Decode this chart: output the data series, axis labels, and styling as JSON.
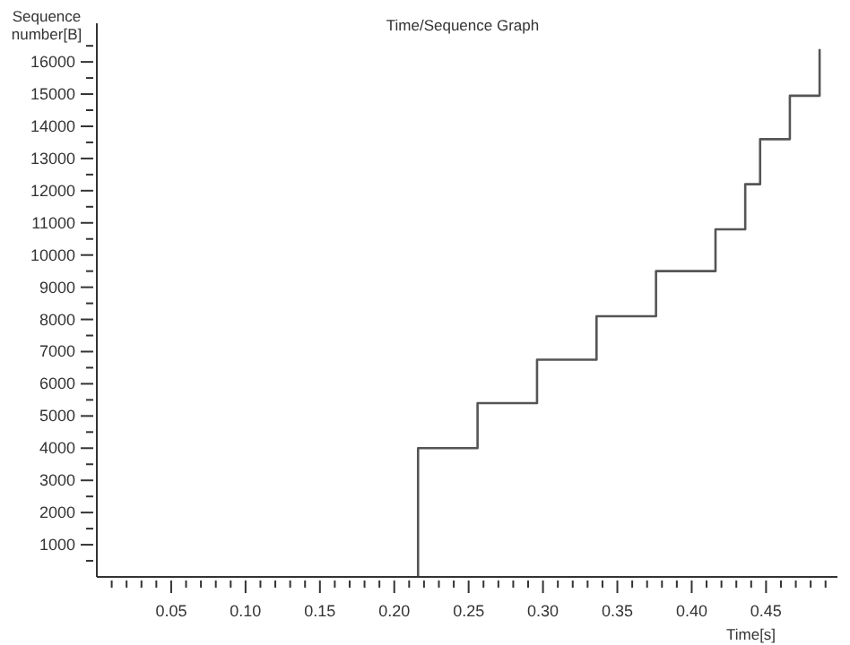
{
  "chart_data": {
    "type": "step",
    "title": "Time/Sequence Graph",
    "xlabel": "Time[s]",
    "ylabel": "Sequence\nnumber[B]",
    "x": [
      0.216,
      0.216,
      0.256,
      0.296,
      0.336,
      0.376,
      0.416,
      0.436,
      0.446,
      0.466,
      0.486
    ],
    "series": [
      {
        "color": "#555555",
        "values": [
          0,
          4000,
          5400,
          6750,
          8100,
          9500,
          10800,
          12200,
          13600,
          14950,
          16400
        ]
      }
    ],
    "xlim": [
      0,
      0.498
    ],
    "ylim": [
      0,
      17200
    ],
    "xticks": [
      {
        "value": 0.01,
        "label": null
      },
      {
        "value": 0.02,
        "label": null
      },
      {
        "value": 0.03,
        "label": null
      },
      {
        "value": 0.04,
        "label": null
      },
      {
        "value": 0.05,
        "label": "0.05"
      },
      {
        "value": 0.06,
        "label": null
      },
      {
        "value": 0.07,
        "label": null
      },
      {
        "value": 0.08,
        "label": null
      },
      {
        "value": 0.09,
        "label": null
      },
      {
        "value": 0.1,
        "label": "0.10"
      },
      {
        "value": 0.11,
        "label": null
      },
      {
        "value": 0.12,
        "label": null
      },
      {
        "value": 0.13,
        "label": null
      },
      {
        "value": 0.14,
        "label": null
      },
      {
        "value": 0.15,
        "label": "0.15"
      },
      {
        "value": 0.16,
        "label": null
      },
      {
        "value": 0.17,
        "label": null
      },
      {
        "value": 0.18,
        "label": null
      },
      {
        "value": 0.19,
        "label": null
      },
      {
        "value": 0.2,
        "label": "0.20"
      },
      {
        "value": 0.21,
        "label": null
      },
      {
        "value": 0.22,
        "label": null
      },
      {
        "value": 0.23,
        "label": null
      },
      {
        "value": 0.24,
        "label": null
      },
      {
        "value": 0.25,
        "label": "0.25"
      },
      {
        "value": 0.26,
        "label": null
      },
      {
        "value": 0.27,
        "label": null
      },
      {
        "value": 0.28,
        "label": null
      },
      {
        "value": 0.29,
        "label": null
      },
      {
        "value": 0.3,
        "label": "0.30"
      },
      {
        "value": 0.31,
        "label": null
      },
      {
        "value": 0.32,
        "label": null
      },
      {
        "value": 0.33,
        "label": null
      },
      {
        "value": 0.34,
        "label": null
      },
      {
        "value": 0.35,
        "label": "0.35"
      },
      {
        "value": 0.36,
        "label": null
      },
      {
        "value": 0.37,
        "label": null
      },
      {
        "value": 0.38,
        "label": null
      },
      {
        "value": 0.39,
        "label": null
      },
      {
        "value": 0.4,
        "label": "0.40"
      },
      {
        "value": 0.41,
        "label": null
      },
      {
        "value": 0.42,
        "label": null
      },
      {
        "value": 0.43,
        "label": null
      },
      {
        "value": 0.44,
        "label": null
      },
      {
        "value": 0.45,
        "label": "0.45"
      },
      {
        "value": 0.46,
        "label": null
      },
      {
        "value": 0.47,
        "label": null
      },
      {
        "value": 0.48,
        "label": null
      },
      {
        "value": 0.49,
        "label": null
      }
    ],
    "yticks": [
      {
        "value": 500,
        "label": null
      },
      1000,
      {
        "value": 1500,
        "label": null
      },
      2000,
      {
        "value": 2500,
        "label": null
      },
      3000,
      {
        "value": 3500,
        "label": null
      },
      4000,
      {
        "value": 4500,
        "label": null
      },
      5000,
      {
        "value": 5500,
        "label": null
      },
      6000,
      {
        "value": 6500,
        "label": null
      },
      7000,
      {
        "value": 7500,
        "label": null
      },
      8000,
      {
        "value": 8500,
        "label": null
      },
      9000,
      {
        "value": 9500,
        "label": null
      },
      10000,
      {
        "value": 10500,
        "label": null
      },
      11000,
      {
        "value": 11500,
        "label": null
      },
      12000,
      {
        "value": 12500,
        "label": null
      },
      13000,
      {
        "value": 13500,
        "label": null
      },
      14000,
      {
        "value": 14500,
        "label": null
      },
      15000,
      {
        "value": 15500,
        "label": null
      },
      16000,
      {
        "value": 16500,
        "label": null
      }
    ],
    "grid": false,
    "legend": false,
    "marker": "none",
    "line_style": "solid"
  }
}
